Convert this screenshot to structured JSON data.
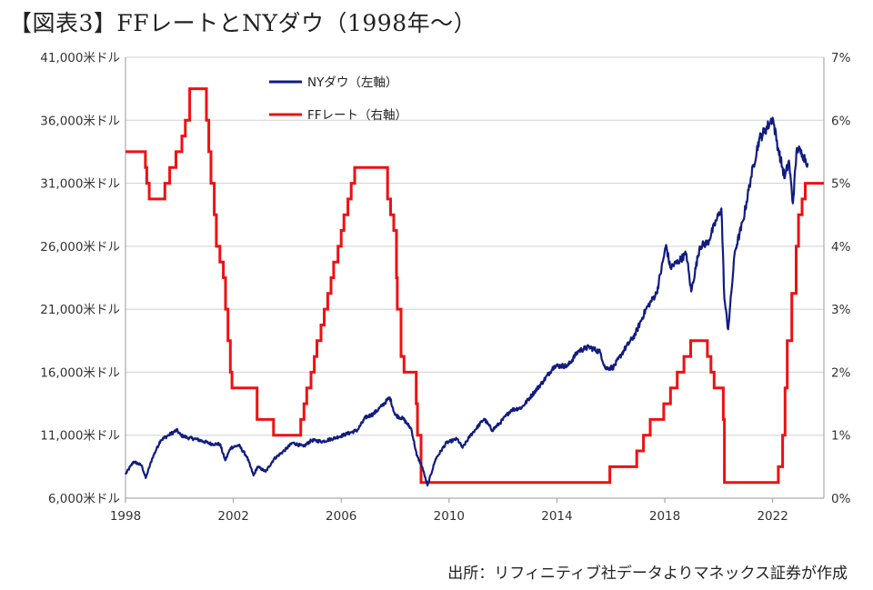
{
  "title": "【図表3】FFレートとNYダウ（1998年～）",
  "source": "出所：リフィニティブ社データよりマネックス証券が作成",
  "colors": {
    "dow": "#111c80",
    "ff": "#ee1111",
    "grid": "#d0d0d0",
    "axis": "#999999"
  },
  "chart_data": {
    "type": "line",
    "title": "【図表3】FFレートとNYダウ（1998年～）",
    "x_ticks": [
      1998,
      2002,
      2006,
      2010,
      2014,
      2018,
      2022
    ],
    "xlim": [
      1998,
      2023.9
    ],
    "left_axis": {
      "ylim": [
        6000,
        41000
      ],
      "ticks": [
        "6,000米ドル",
        "11,000米ドル",
        "16,000米ドル",
        "21,000米ドル",
        "26,000米ドル",
        "31,000米ドル",
        "36,000米ドル",
        "41,000米ドル"
      ],
      "tick_values": [
        6000,
        11000,
        16000,
        21000,
        26000,
        31000,
        36000,
        41000
      ]
    },
    "right_axis": {
      "ylim": [
        0,
        7
      ],
      "ticks": [
        "0%",
        "1%",
        "2%",
        "3%",
        "4%",
        "5%",
        "6%",
        "7%"
      ],
      "tick_values": [
        0,
        1,
        2,
        3,
        4,
        5,
        6,
        7
      ]
    },
    "grid": "horizontal",
    "legend_position": "top-left",
    "series": [
      {
        "name": "NYダウ（左軸）",
        "axis": "left",
        "style": "line",
        "x": [
          1998.0,
          1998.3,
          1998.6,
          1998.75,
          1999.0,
          1999.3,
          1999.6,
          1999.9,
          2000.05,
          2000.3,
          2000.6,
          2000.9,
          2001.2,
          2001.5,
          2001.7,
          2001.9,
          2002.2,
          2002.5,
          2002.75,
          2002.9,
          2003.2,
          2003.5,
          2003.9,
          2004.2,
          2004.6,
          2004.9,
          2005.3,
          2005.8,
          2006.2,
          2006.6,
          2006.9,
          2007.2,
          2007.5,
          2007.8,
          2008.0,
          2008.3,
          2008.6,
          2008.8,
          2009.0,
          2009.2,
          2009.5,
          2009.9,
          2010.3,
          2010.5,
          2010.8,
          2011.3,
          2011.6,
          2011.9,
          2012.3,
          2012.7,
          2013.0,
          2013.5,
          2013.9,
          2014.4,
          2014.8,
          2015.2,
          2015.6,
          2015.8,
          2016.1,
          2016.5,
          2016.9,
          2017.3,
          2017.7,
          2018.05,
          2018.2,
          2018.5,
          2018.8,
          2018.98,
          2019.3,
          2019.6,
          2019.9,
          2020.1,
          2020.21,
          2020.35,
          2020.6,
          2020.9,
          2021.2,
          2021.5,
          2021.9,
          2022.0,
          2022.2,
          2022.45,
          2022.6,
          2022.75,
          2022.9,
          2023.1,
          2023.3
        ],
        "y": [
          7900,
          8900,
          8600,
          7600,
          9200,
          10600,
          11000,
          11400,
          11000,
          10800,
          10700,
          10500,
          10300,
          10300,
          9000,
          10000,
          10200,
          9300,
          7800,
          8500,
          8100,
          9100,
          9800,
          10400,
          10100,
          10600,
          10500,
          10800,
          11100,
          11400,
          12400,
          12700,
          13300,
          14000,
          12600,
          12300,
          11500,
          9400,
          8500,
          7000,
          9100,
          10400,
          10700,
          10000,
          11000,
          12300,
          11400,
          12000,
          13000,
          13200,
          14000,
          15300,
          16500,
          16500,
          17700,
          18000,
          17600,
          16300,
          16400,
          17800,
          19000,
          21000,
          22300,
          26100,
          24300,
          24800,
          25400,
          22400,
          26000,
          26300,
          28000,
          29000,
          21800,
          19400,
          25600,
          28000,
          31500,
          34500,
          35800,
          36200,
          33800,
          31400,
          32800,
          29400,
          33800,
          33300,
          32600
        ]
      },
      {
        "name": "FFレート（右軸）",
        "axis": "right",
        "style": "step",
        "x": [
          1998.0,
          1998.74,
          1998.79,
          1998.88,
          1999.46,
          1999.64,
          1999.87,
          2000.09,
          2000.22,
          2000.38,
          2001.0,
          2001.09,
          2001.17,
          2001.29,
          2001.37,
          2001.5,
          2001.63,
          2001.71,
          2001.8,
          2001.89,
          2001.95,
          2002.88,
          2003.49,
          2004.5,
          2004.62,
          2004.72,
          2004.88,
          2005.0,
          2005.1,
          2005.25,
          2005.37,
          2005.5,
          2005.62,
          2005.72,
          2005.88,
          2006.0,
          2006.1,
          2006.25,
          2006.37,
          2006.5,
          2007.72,
          2007.83,
          2007.95,
          2008.05,
          2008.08,
          2008.22,
          2008.33,
          2008.78,
          2008.83,
          2008.96,
          2015.96,
          2016.96,
          2017.21,
          2017.46,
          2017.96,
          2018.21,
          2018.46,
          2018.71,
          2018.96,
          2019.58,
          2019.71,
          2019.83,
          2020.17,
          2020.21,
          2022.21,
          2022.37,
          2022.46,
          2022.54,
          2022.71,
          2022.87,
          2022.96,
          2023.09,
          2023.21,
          2023.38,
          2023.9
        ],
        "y": [
          5.5,
          5.25,
          5.0,
          4.75,
          5.0,
          5.25,
          5.5,
          5.75,
          6.0,
          6.5,
          6.0,
          5.5,
          5.0,
          4.5,
          4.0,
          3.75,
          3.5,
          3.0,
          2.5,
          2.0,
          1.75,
          1.25,
          1.0,
          1.25,
          1.5,
          1.75,
          2.0,
          2.25,
          2.5,
          2.75,
          3.0,
          3.25,
          3.5,
          3.75,
          4.0,
          4.25,
          4.5,
          4.75,
          5.0,
          5.25,
          4.75,
          4.5,
          4.25,
          3.5,
          3.0,
          2.25,
          2.0,
          1.5,
          1.0,
          0.25,
          0.5,
          0.75,
          1.0,
          1.25,
          1.5,
          1.75,
          2.0,
          2.25,
          2.5,
          2.25,
          2.0,
          1.75,
          1.25,
          0.25,
          0.5,
          1.0,
          1.75,
          2.5,
          3.25,
          4.0,
          4.5,
          4.75,
          5.0,
          5.0,
          5.0
        ]
      }
    ]
  }
}
